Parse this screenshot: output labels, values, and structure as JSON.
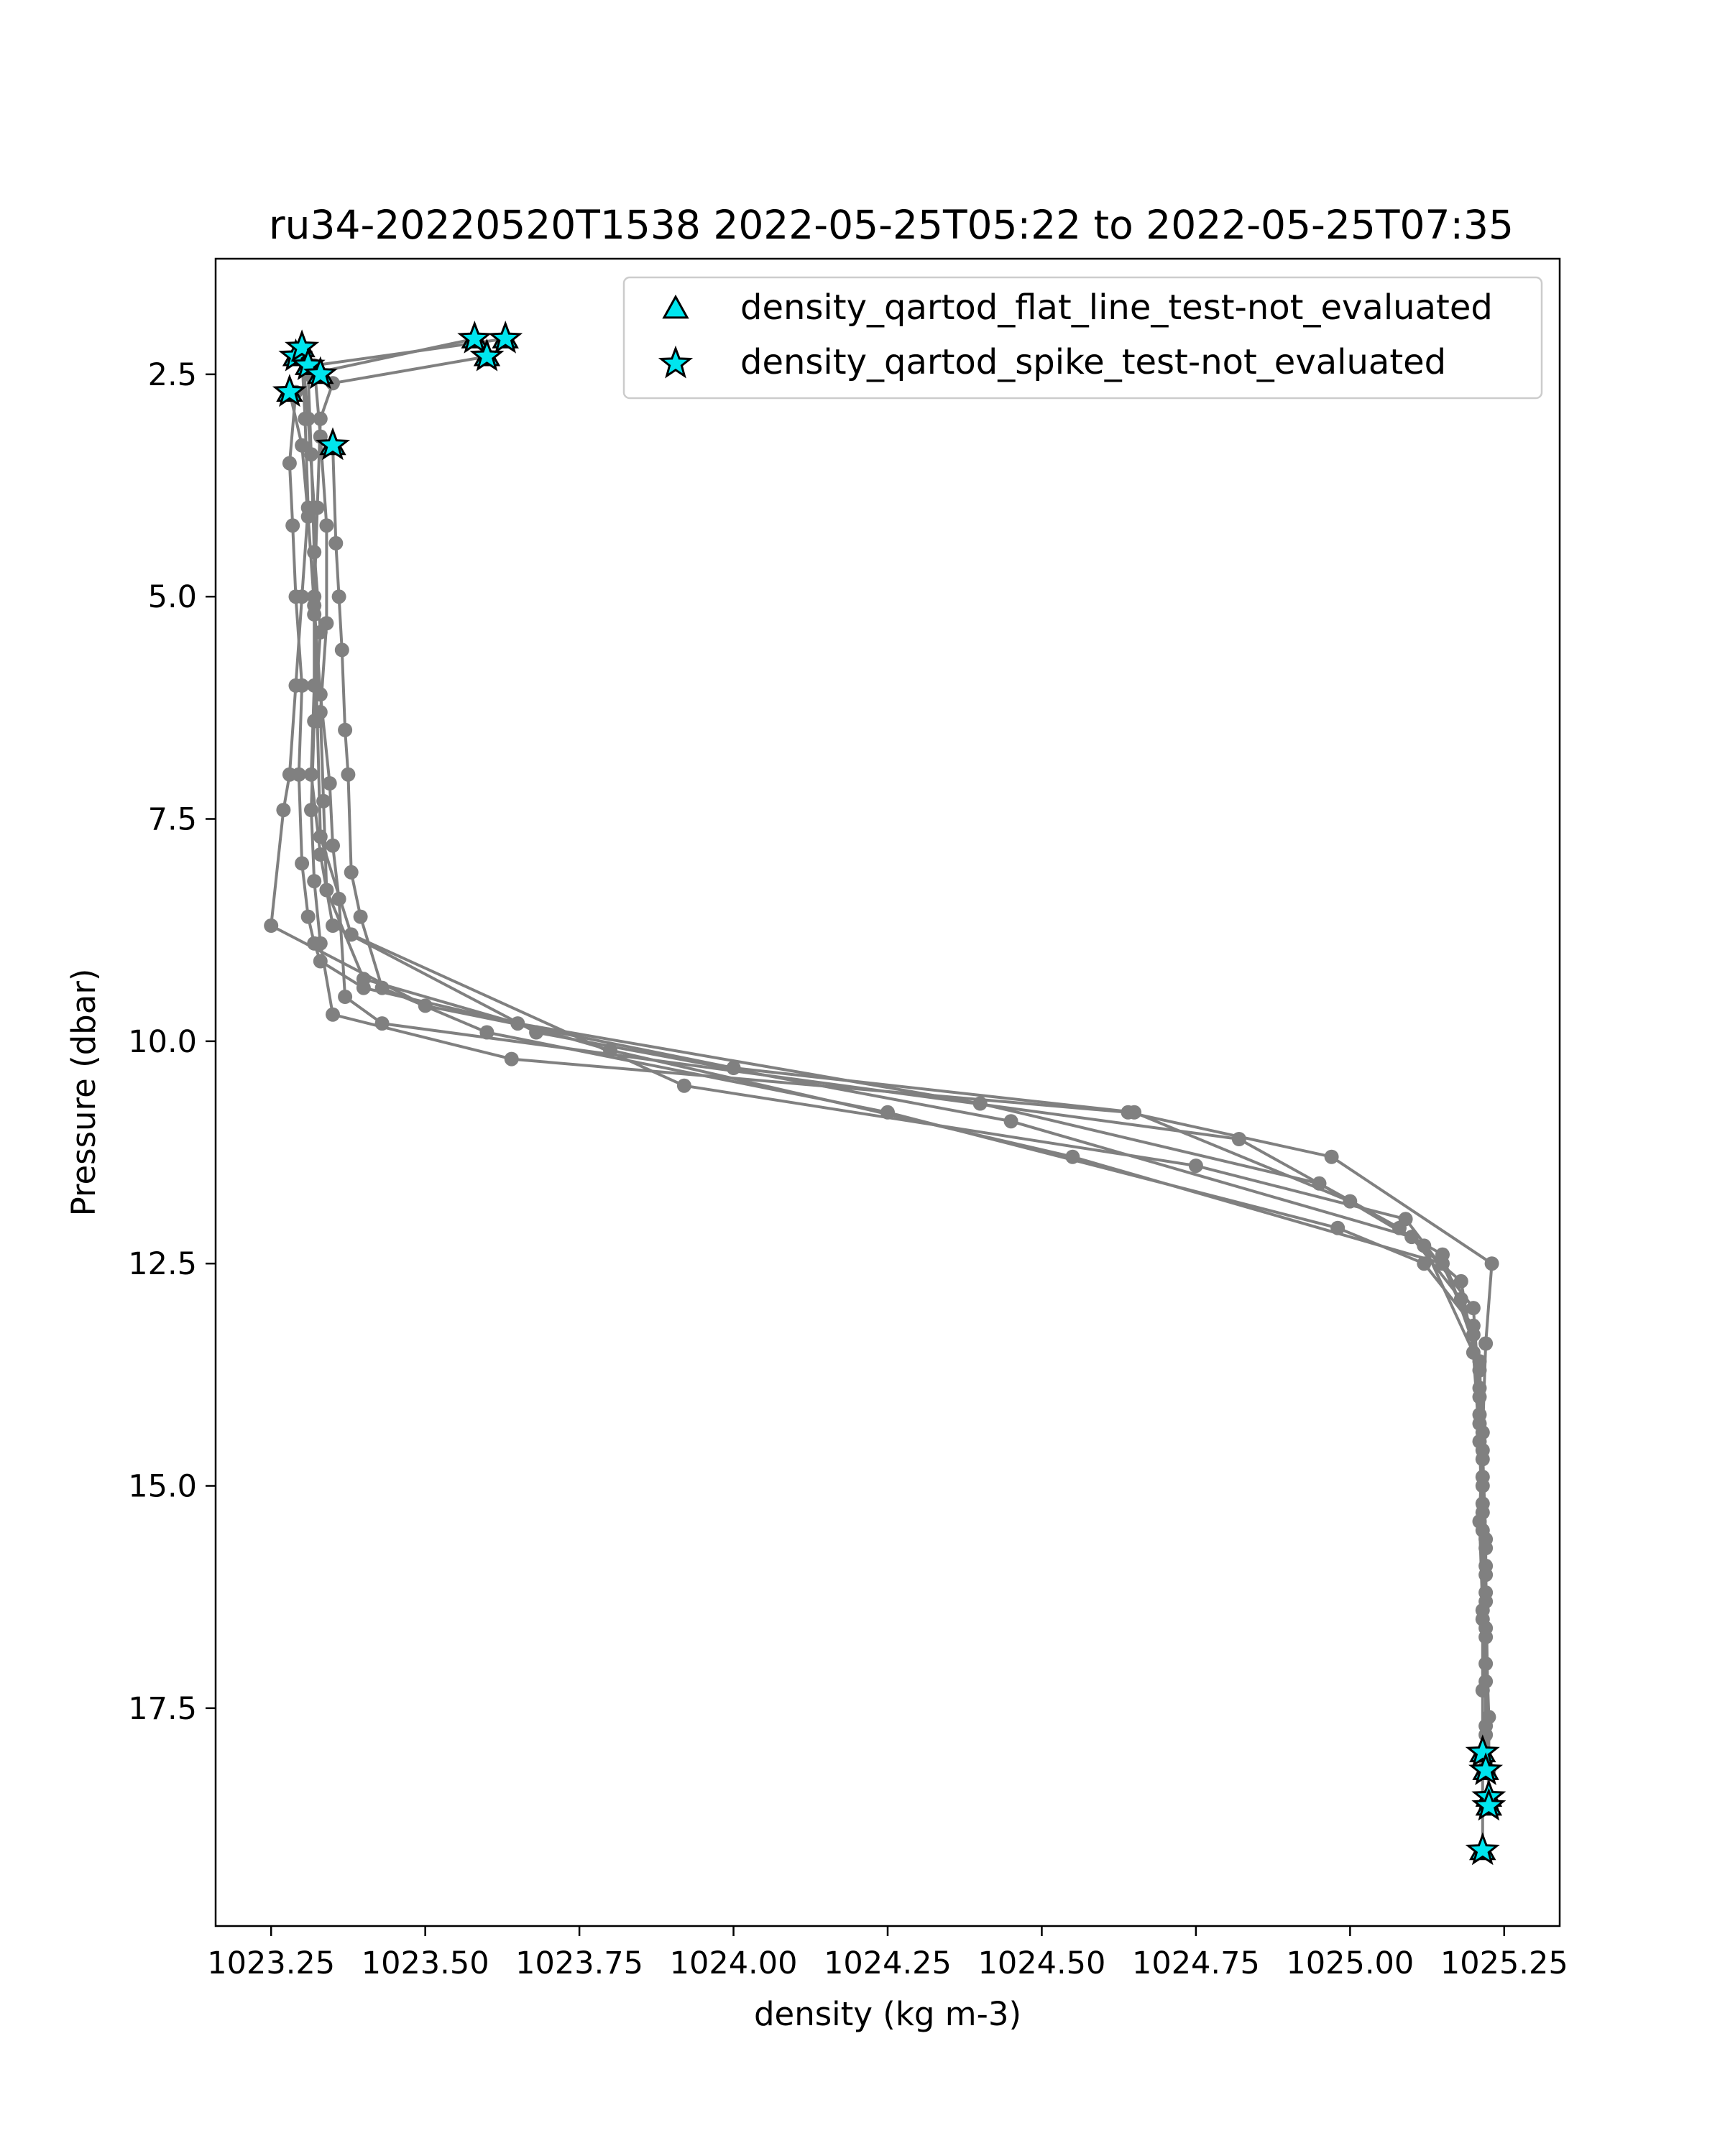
{
  "chart_data": {
    "type": "scatter",
    "title": "ru34-20220520T1538 2022-05-25T05:22 to 2022-05-25T07:35",
    "xlabel": "density (kg m-3)",
    "ylabel": "Pressure (dbar)",
    "xlim": [
      1023.16,
      1025.34
    ],
    "ylim": [
      19.95,
      1.2
    ],
    "y_inverted": true,
    "grid": false,
    "legend_position": "top-right",
    "x_ticks": [
      1023.25,
      1023.5,
      1023.75,
      1024.0,
      1024.25,
      1024.5,
      1024.75,
      1025.0,
      1025.25
    ],
    "x_tick_labels": [
      "1023.25",
      "1023.50",
      "1023.75",
      "1024.00",
      "1024.25",
      "1024.50",
      "1024.75",
      "1025.00",
      "1025.25"
    ],
    "y_ticks": [
      2.5,
      5.0,
      7.5,
      10.0,
      12.5,
      15.0,
      17.5
    ],
    "y_tick_labels": [
      "2.5",
      "5.0",
      "7.5",
      "10.0",
      "12.5",
      "15.0",
      "17.5"
    ],
    "profile_color": "#808080",
    "marker_color": "#00e5ee",
    "profiles": [
      {
        "x": [
          1023.29,
          1023.28,
          1023.285,
          1023.29,
          1023.3,
          1023.295,
          1023.3,
          1023.31,
          1023.32,
          1023.33,
          1023.4,
          1023.65,
          1024.4,
          1024.95,
          1025.12,
          1025.2,
          1025.21,
          1025.215,
          1025.215,
          1025.22,
          1025.22,
          1025.22
        ],
        "y": [
          2.7,
          3.5,
          4.2,
          5.0,
          6.0,
          7.0,
          8.0,
          8.6,
          8.9,
          9.1,
          9.4,
          9.8,
          10.7,
          11.6,
          12.3,
          13.5,
          14.5,
          15.5,
          16.5,
          17.2,
          17.8,
          18.1
        ]
      },
      {
        "x": [
          1023.3,
          1023.305,
          1023.31,
          1023.3,
          1023.29,
          1023.28,
          1023.27,
          1023.25,
          1023.5,
          1024.0,
          1024.65,
          1025.0,
          1025.15,
          1025.21,
          1025.215,
          1025.22,
          1025.22,
          1025.225,
          1025.225
        ],
        "y": [
          2.3,
          3.0,
          4.0,
          5.0,
          6.0,
          7.0,
          7.4,
          8.7,
          9.6,
          10.3,
          10.8,
          11.8,
          12.4,
          13.6,
          14.6,
          15.6,
          16.6,
          17.6,
          18.2
        ]
      },
      {
        "x": [
          1023.6,
          1023.35,
          1023.33,
          1023.325,
          1023.32,
          1023.32,
          1023.315,
          1023.33,
          1023.35,
          1023.68,
          1024.45,
          1025.1,
          1025.18,
          1025.21,
          1025.215,
          1025.22,
          1025.22,
          1025.225
        ],
        "y": [
          2.3,
          2.6,
          3.0,
          4.0,
          5.0,
          6.0,
          7.0,
          7.9,
          8.7,
          9.9,
          10.9,
          12.2,
          12.9,
          13.7,
          14.7,
          15.7,
          16.7,
          18.6
        ]
      },
      {
        "x": [
          1023.63,
          1023.32,
          1023.33,
          1023.34,
          1023.34,
          1023.33,
          1023.335,
          1023.34,
          1023.4,
          1023.8,
          1024.55,
          1025.15,
          1025.2,
          1025.21,
          1025.215,
          1025.22,
          1025.215
        ],
        "y": [
          2.1,
          2.4,
          3.2,
          4.2,
          5.3,
          6.3,
          7.3,
          8.3,
          9.3,
          10.1,
          11.3,
          12.5,
          13.3,
          14.3,
          15.3,
          16.3,
          17.3
        ]
      },
      {
        "x": [
          1023.28,
          1023.3,
          1023.31,
          1023.32,
          1023.33,
          1023.345,
          1023.35,
          1023.36,
          1023.37,
          1023.43,
          1024.82,
          1025.08,
          1025.18,
          1025.21,
          1025.215,
          1025.22,
          1025.225
        ],
        "y": [
          2.7,
          3.3,
          4.1,
          5.1,
          6.1,
          7.1,
          7.8,
          8.4,
          9.5,
          9.8,
          11.1,
          12.1,
          12.7,
          13.9,
          14.9,
          15.9,
          18.2
        ]
      },
      {
        "x": [
          1023.35,
          1023.355,
          1023.36,
          1023.365,
          1023.37,
          1023.375,
          1023.38,
          1023.395,
          1023.43,
          1023.6,
          1024.25,
          1024.98,
          1025.12,
          1025.2,
          1025.21,
          1025.215,
          1025.22,
          1025.22,
          1025.215
        ],
        "y": [
          3.3,
          4.4,
          5.0,
          5.6,
          6.5,
          7.0,
          8.1,
          8.6,
          9.4,
          9.9,
          10.8,
          12.1,
          12.5,
          13.2,
          14.2,
          15.2,
          16.2,
          17.7,
          18.0
        ]
      },
      {
        "x": [
          1023.58,
          1023.31,
          1023.315,
          1023.32,
          1023.33,
          1023.32,
          1023.315,
          1023.32,
          1023.33,
          1023.35,
          1023.64,
          1024.64,
          1024.97,
          1025.23,
          1025.22,
          1025.215,
          1025.21,
          1025.215,
          1025.215
        ],
        "y": [
          2.1,
          2.5,
          3.4,
          4.5,
          5.4,
          6.4,
          7.4,
          8.2,
          8.9,
          9.7,
          10.2,
          10.8,
          11.3,
          12.5,
          13.4,
          14.4,
          15.4,
          16.4,
          19.1
        ]
      },
      {
        "x": [
          1023.3,
          1023.31,
          1023.32,
          1023.32,
          1023.325,
          1023.33,
          1023.38,
          1023.92,
          1024.75,
          1025.09,
          1025.2,
          1025.21,
          1025.215,
          1025.22,
          1025.22
        ],
        "y": [
          2.2,
          3.0,
          4.0,
          5.2,
          6.4,
          7.7,
          8.8,
          10.5,
          11.4,
          12.0,
          13.0,
          14.0,
          15.0,
          16.0,
          17.0
        ]
      }
    ],
    "legend": [
      {
        "label": "density_qartod_flat_line_test-not_evaluated",
        "marker": "triangle"
      },
      {
        "label": "density_qartod_spike_test-not_evaluated",
        "marker": "star"
      }
    ],
    "flat_line_points": {
      "x": [
        1023.29,
        1023.3,
        1023.31,
        1023.33,
        1023.28,
        1023.35,
        1023.58,
        1023.6,
        1023.63,
        1025.215,
        1025.22,
        1025.225,
        1025.225,
        1025.215
      ],
      "y": [
        2.3,
        2.2,
        2.4,
        2.5,
        2.7,
        3.3,
        2.1,
        2.3,
        2.1,
        18.0,
        18.2,
        18.5,
        18.6,
        19.1
      ]
    },
    "spike_points": {
      "x": [
        1023.29,
        1023.3,
        1023.31,
        1023.33,
        1023.28,
        1023.35,
        1023.58,
        1023.6,
        1023.63,
        1025.215,
        1025.22,
        1025.225,
        1025.225,
        1025.215
      ],
      "y": [
        2.3,
        2.2,
        2.4,
        2.5,
        2.7,
        3.3,
        2.1,
        2.3,
        2.1,
        18.0,
        18.2,
        18.5,
        18.6,
        19.1
      ]
    }
  }
}
